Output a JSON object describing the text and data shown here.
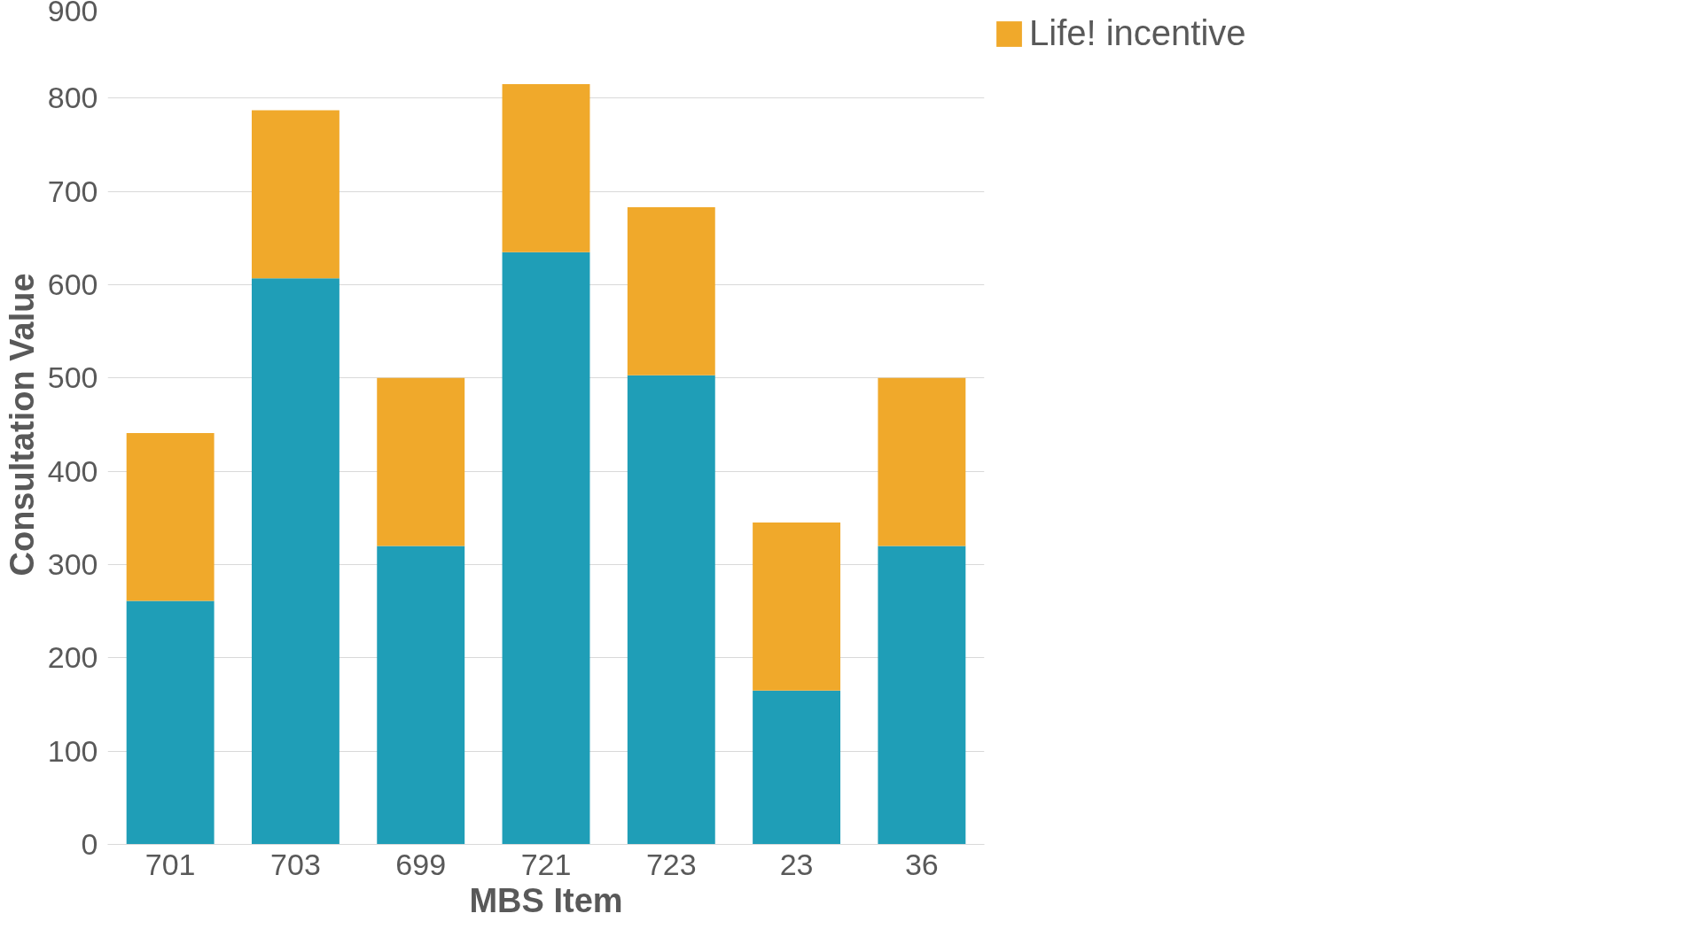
{
  "chart_data": {
    "type": "bar",
    "stacked": true,
    "xlabel": "MBS Item",
    "ylabel": "Consultation Value",
    "categories": [
      "701",
      "703",
      "699",
      "721",
      "723",
      "23",
      "36"
    ],
    "series": [
      {
        "color": "#1f9eb7",
        "values": [
          261,
          607,
          320,
          635,
          503,
          165,
          320
        ]
      },
      {
        "name": "Life! incentive",
        "color": "#f0a92b",
        "values": [
          180,
          180,
          180,
          180,
          180,
          180,
          180
        ]
      }
    ],
    "ylim": [
      0,
      900
    ],
    "yticks": [
      0,
      100,
      200,
      300,
      400,
      500,
      600,
      700,
      800,
      900
    ],
    "grid": "y",
    "legend": "top right"
  }
}
